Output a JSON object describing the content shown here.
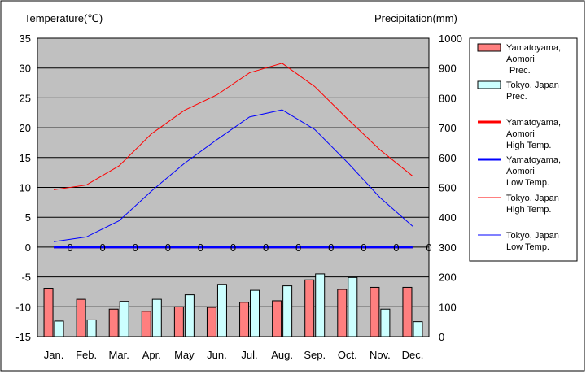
{
  "chart_data": {
    "type": "bar+line",
    "left_axis_title": "Temperature(℃)",
    "right_axis_title": "Precipitation(mm)",
    "categories": [
      "Jan.",
      "Feb.",
      "Mar.",
      "Apr.",
      "May",
      "Jun.",
      "Jul.",
      "Aug.",
      "Sep.",
      "Oct.",
      "Nov.",
      "Dec."
    ],
    "ylim_temperature": [
      -15,
      35
    ],
    "yticks_temperature": [
      "35",
      "30",
      "25",
      "20",
      "15",
      "10",
      "5",
      "0",
      "-5",
      "-10",
      "-15"
    ],
    "ylim_precipitation": [
      0,
      1000
    ],
    "yticks_precipitation": [
      "1000",
      "900",
      "800",
      "700",
      "600",
      "500",
      "400",
      "300",
      "200",
      "100",
      "0"
    ],
    "grid": true,
    "legend_position": "right",
    "plot_background": "#c0c0c0",
    "bars": [
      {
        "name": "Yamatoyama, Aomori Prec.",
        "color": "#ff7f7f",
        "values": [
          162,
          125,
          92,
          85,
          100,
          98,
          115,
          120,
          190,
          158,
          165,
          165
        ]
      },
      {
        "name": "Tokyo, Japan Prec.",
        "color": "#ccffff",
        "values": [
          52,
          56,
          118,
          125,
          140,
          175,
          155,
          170,
          210,
          198,
          92,
          50
        ]
      }
    ],
    "lines": [
      {
        "name": "Yamatoyama, Aomori High Temp.",
        "color": "#ff0000",
        "width": 3,
        "values": [
          0,
          0,
          0,
          0,
          0,
          0,
          0,
          0,
          0,
          0,
          0,
          0
        ]
      },
      {
        "name": "Yamatoyama, Aomori Low Temp.",
        "color": "#0000ff",
        "width": 3,
        "values": [
          0,
          0,
          0,
          0,
          0,
          0,
          0,
          0,
          0,
          0,
          0,
          0
        ]
      },
      {
        "name": "Tokyo, Japan High Temp.",
        "color": "#ff0000",
        "width": 1,
        "values": [
          9.6,
          10.4,
          13.6,
          19.0,
          22.9,
          25.5,
          29.2,
          30.8,
          26.9,
          21.5,
          16.3,
          11.9
        ]
      },
      {
        "name": "Tokyo, Japan Low Temp.",
        "color": "#0000ff",
        "width": 1,
        "values": [
          0.9,
          1.7,
          4.4,
          9.4,
          14.0,
          18.0,
          21.8,
          23.0,
          19.7,
          14.2,
          8.3,
          3.5
        ]
      }
    ],
    "point_labels": [
      "0",
      "0",
      "0",
      "0",
      "0",
      "0",
      "0",
      "0",
      "0",
      "0",
      "0",
      "0"
    ],
    "legend": [
      {
        "kind": "bar",
        "color": "#ff7f7f",
        "lines": [
          "Yamatoyama,",
          "Aomori",
          "Prec."
        ]
      },
      {
        "kind": "bar",
        "color": "#ccffff",
        "lines": [
          "Tokyo, Japan",
          "Prec."
        ]
      },
      {
        "kind": "line",
        "color": "#ff0000",
        "width": 3,
        "lines": [
          "Yamatoyama,",
          "Aomori",
          "High Temp."
        ]
      },
      {
        "kind": "line",
        "color": "#0000ff",
        "width": 3,
        "lines": [
          "Yamatoyama,",
          "Aomori",
          "Low Temp."
        ]
      },
      {
        "kind": "line",
        "color": "#ff0000",
        "width": 1,
        "lines": [
          "Tokyo, Japan",
          "High Temp."
        ]
      },
      {
        "kind": "line",
        "color": "#0000ff",
        "width": 1,
        "lines": [
          "Tokyo, Japan",
          "Low Temp."
        ]
      }
    ]
  }
}
